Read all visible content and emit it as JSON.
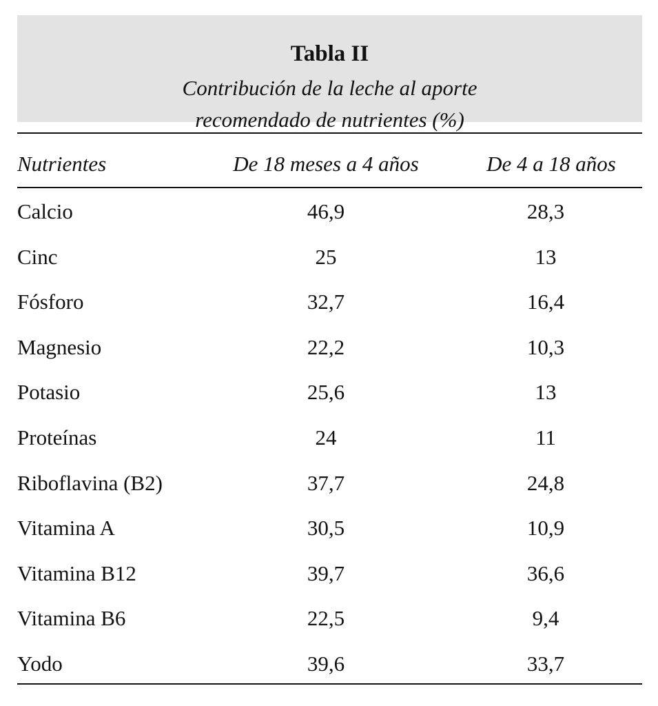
{
  "caption": {
    "title": "Tabla II",
    "subtitle_line1": "Contribución de la leche al aporte",
    "subtitle_line2": "recomendado de nutrientes (%)"
  },
  "table": {
    "headers": [
      "Nutrientes",
      "De 18 meses a 4 años",
      "De 4 a 18 años"
    ],
    "rows": [
      [
        "Calcio",
        "46,9",
        "28,3"
      ],
      [
        "Cinc",
        "25",
        "13"
      ],
      [
        "Fósforo",
        "32,7",
        "16,4"
      ],
      [
        "Magnesio",
        "22,2",
        "10,3"
      ],
      [
        "Potasio",
        "25,6",
        "13"
      ],
      [
        "Proteínas",
        "24",
        "11"
      ],
      [
        "Riboflavina (B2)",
        "37,7",
        "24,8"
      ],
      [
        "Vitamina A",
        "30,5",
        "10,9"
      ],
      [
        "Vitamina B12",
        "39,7",
        "36,6"
      ],
      [
        "Vitamina B6",
        "22,5",
        "9,4"
      ],
      [
        "Yodo",
        "39,6",
        "33,7"
      ]
    ]
  }
}
